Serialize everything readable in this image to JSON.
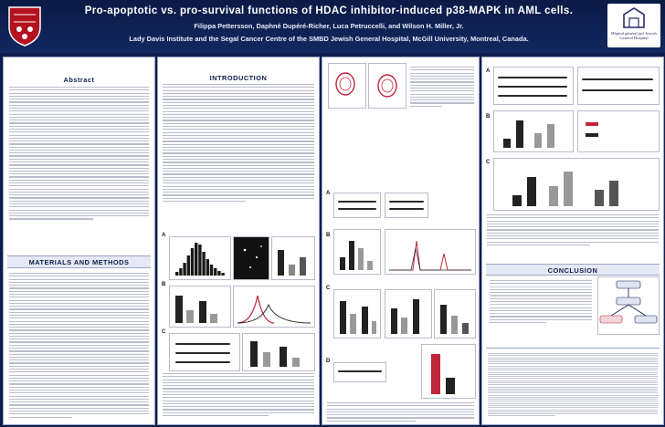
{
  "header": {
    "title": "Pro-apoptotic vs. pro-survival functions of HDAC inhibitor-induced p38-MAPK in AML cells.",
    "authors": "Filippa Pettersson, Daphné Dupéré-Richer, Luca Petruccelli, and Wilson H. Miller, Jr.",
    "affiliation": "Lady Davis Institute and the Segal Cancer Centre of the SMBD Jewish General Hospital, McGill University, Montreal, Canada.",
    "logo_right_text": "Hôpital général juif Jewish General Hospital"
  },
  "sections": {
    "abstract": "Abstract",
    "methods": "MATERIALS AND METHODS",
    "introduction": "INTRODUCTION",
    "conclusion": "CONCLUSION"
  },
  "panel_labels": {
    "a1": "A",
    "b1": "B",
    "c1": "C",
    "a2": "A",
    "b2": "B",
    "c2": "C",
    "d2": "D",
    "a3": "A",
    "b3": "B",
    "c3": "C"
  },
  "colors": {
    "navy": "#0d1c4a",
    "accent_red": "#c0263a"
  }
}
